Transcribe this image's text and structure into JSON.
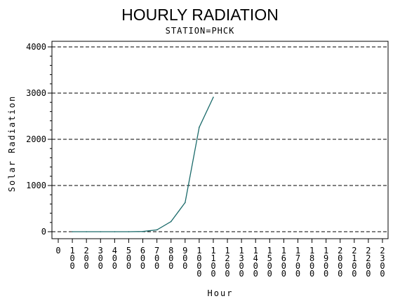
{
  "chart_data": {
    "type": "line",
    "title": "HOURLY RADIATION",
    "subtitle": "STATION=PHCK",
    "xlabel": "Hour",
    "ylabel": "Solar Radiation",
    "xlim": [
      0,
      2300
    ],
    "ylim": [
      0,
      4000
    ],
    "x_ticks": [
      "0",
      "100",
      "200",
      "300",
      "400",
      "500",
      "600",
      "700",
      "800",
      "900",
      "1000",
      "1100",
      "1200",
      "1300",
      "1400",
      "1500",
      "1600",
      "1700",
      "1800",
      "1900",
      "2000",
      "2100",
      "2200",
      "2300"
    ],
    "y_ticks": [
      "0",
      "1000",
      "2000",
      "3000",
      "4000"
    ],
    "grid": "horizontal-dashed",
    "series": [
      {
        "color": "#1a6a6a",
        "x": [
          100,
          200,
          300,
          400,
          500,
          600,
          700,
          800,
          900,
          1000,
          1100
        ],
        "y": [
          0,
          0,
          0,
          0,
          0,
          5,
          40,
          220,
          630,
          2260,
          2910
        ]
      }
    ]
  }
}
